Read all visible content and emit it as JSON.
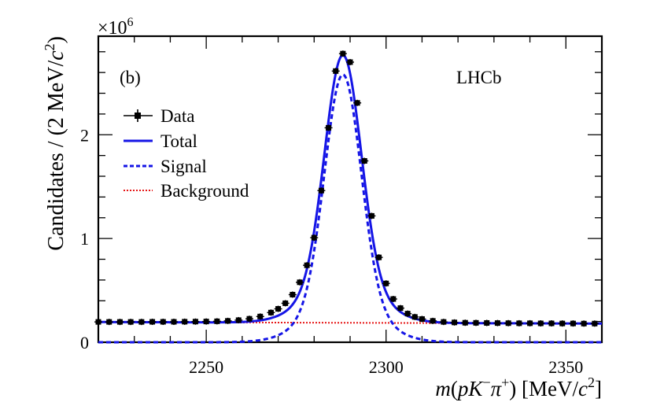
{
  "chart_data": {
    "type": "line",
    "panel_label": "(b)",
    "experiment_label": "LHCb",
    "exponent_label": "×10",
    "exponent_power": "6",
    "xlabel": {
      "m": "m",
      "open": "(",
      "p": "p",
      "K": "K",
      "K_sup": "−",
      "pi": "π",
      "pi_sup": "+",
      "close": ")",
      "units_open": " [MeV/",
      "c": "c",
      "c_sup": "2",
      "units_close": "]"
    },
    "ylabel": {
      "main": "Candidates / (2 MeV/",
      "c": "c",
      "c_sup": "2",
      "close": ")"
    },
    "xlim": [
      2220,
      2360
    ],
    "ylim": [
      0,
      2.95
    ],
    "x_ticks": [
      2250,
      2300,
      2350
    ],
    "x_tick_labels": [
      "2250",
      "2300",
      "2350"
    ],
    "y_ticks": [
      0,
      1,
      2
    ],
    "y_tick_labels": [
      "0",
      "1",
      "2"
    ],
    "legend": {
      "position": "top-left",
      "entries": [
        {
          "name": "Data",
          "style": "marker",
          "color": "#000000"
        },
        {
          "name": "Total",
          "style": "solid",
          "color": "#1515e6"
        },
        {
          "name": "Signal",
          "style": "dashed",
          "color": "#1515e6"
        },
        {
          "name": "Background",
          "style": "dotted",
          "color": "#e61515"
        }
      ]
    },
    "model": {
      "signal_mean": 2288.0,
      "signal_amplitude": 2.58,
      "core_sigma": 5.0,
      "core_fraction": 0.85,
      "wide_sigma": 9.5,
      "background_start": 0.195,
      "background_end": 0.18
    },
    "data_points": {
      "x": [
        2220,
        2223,
        2226,
        2229,
        2232,
        2235,
        2238,
        2241,
        2244,
        2247,
        2250,
        2253,
        2256,
        2259,
        2262,
        2265,
        2268,
        2270,
        2272,
        2274,
        2276,
        2278,
        2280,
        2282,
        2284,
        2286,
        2288,
        2290,
        2292,
        2294,
        2296,
        2298,
        2300,
        2302,
        2304,
        2306,
        2308,
        2310,
        2313,
        2316,
        2319,
        2322,
        2325,
        2328,
        2331,
        2334,
        2337,
        2340,
        2343,
        2346,
        2349,
        2352,
        2355,
        2358
      ],
      "y": [
        0.196,
        0.196,
        0.196,
        0.196,
        0.196,
        0.197,
        0.197,
        0.197,
        0.198,
        0.199,
        0.2,
        0.202,
        0.206,
        0.213,
        0.226,
        0.248,
        0.286,
        0.322,
        0.376,
        0.459,
        0.578,
        0.742,
        1.008,
        1.462,
        2.067,
        2.614,
        2.782,
        2.7,
        2.307,
        1.748,
        1.218,
        0.818,
        0.567,
        0.417,
        0.329,
        0.276,
        0.244,
        0.224,
        0.206,
        0.196,
        0.191,
        0.188,
        0.187,
        0.186,
        0.185,
        0.184,
        0.183,
        0.183,
        0.182,
        0.182,
        0.181,
        0.181,
        0.18,
        0.18
      ]
    },
    "colors": {
      "total": "#1515e6",
      "signal": "#1515e6",
      "background": "#e61515",
      "data": "#000000"
    }
  }
}
